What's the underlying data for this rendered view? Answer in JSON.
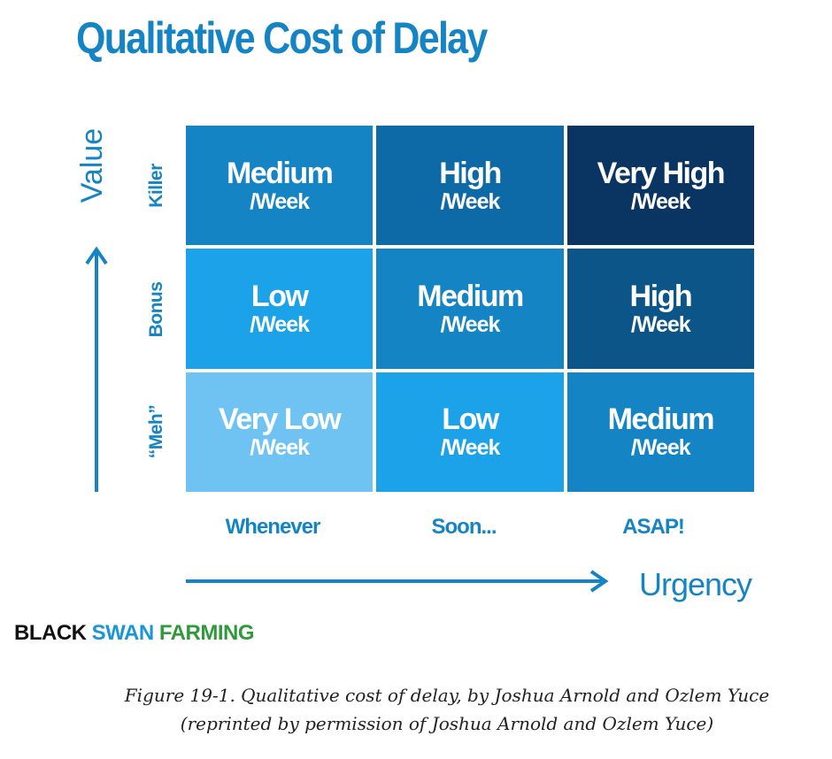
{
  "title": "Qualitative Cost of Delay",
  "y_axis_label": "Value",
  "x_axis_label": "Urgency",
  "rows": [
    {
      "label": "Killer",
      "cells": [
        {
          "level": "Medium",
          "unit": "/Week",
          "color": "#1484c4"
        },
        {
          "level": "High",
          "unit": "/Week",
          "color": "#0e6aa6"
        },
        {
          "level": "Very High",
          "unit": "/Week",
          "color": "#0a3462"
        }
      ]
    },
    {
      "label": "Bonus",
      "cells": [
        {
          "level": "Low",
          "unit": "/Week",
          "color": "#1ba2e8"
        },
        {
          "level": "Medium",
          "unit": "/Week",
          "color": "#1484c4"
        },
        {
          "level": "High",
          "unit": "/Week",
          "color": "#0c5589"
        }
      ]
    },
    {
      "label": "“Meh”",
      "cells": [
        {
          "level": "Very Low",
          "unit": "/Week",
          "color": "#6ec3f2"
        },
        {
          "level": "Low",
          "unit": "/Week",
          "color": "#1ba2e8"
        },
        {
          "level": "Medium",
          "unit": "/Week",
          "color": "#1484c4"
        }
      ]
    }
  ],
  "columns": [
    "Whenever",
    "Soon...",
    "ASAP!"
  ],
  "logo": {
    "part1": "BLACK",
    "part2": " SWAN",
    "part3": " FARMING"
  },
  "caption": {
    "line1": "Figure 19-1. Qualitative cost of delay, by Joshua Arnold and Ozlem Yuce",
    "line2": "(reprinted by permission of Joshua Arnold and Ozlem Yuce)"
  },
  "colors": {
    "accent": "#1584c4"
  }
}
